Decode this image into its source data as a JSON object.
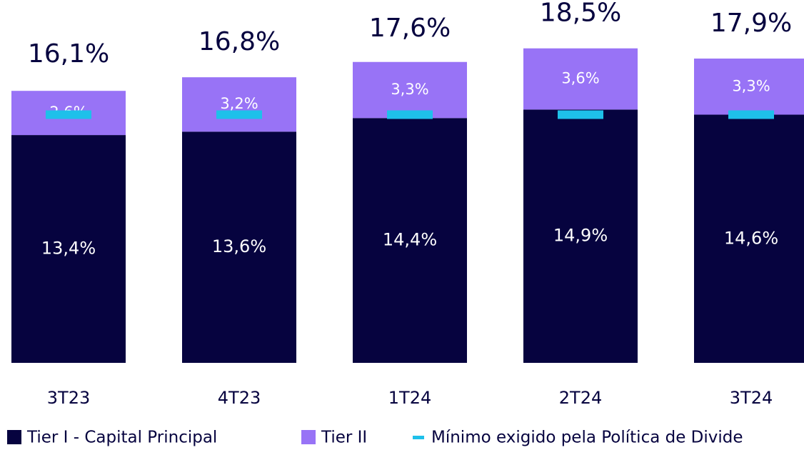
{
  "chart_data": {
    "type": "stacked_bar",
    "categories": [
      "3T23",
      "4T23",
      "1T24",
      "2T24",
      "3T24"
    ],
    "series": [
      {
        "name": "Tier I - Capital Principal",
        "color": "#06033f",
        "values": [
          13.4,
          13.6,
          14.4,
          14.9,
          14.6
        ],
        "value_labels": [
          "13,4%",
          "13,6%",
          "14,4%",
          "14,9%",
          "14,6%"
        ]
      },
      {
        "name": "Tier II",
        "color": "#9873f6",
        "values": [
          2.6,
          3.2,
          3.3,
          3.6,
          3.3
        ],
        "value_labels": [
          "2,6%",
          "3,2%",
          "3,3%",
          "3,6%",
          "3,3%"
        ]
      }
    ],
    "totals": {
      "values": [
        16.1,
        16.8,
        17.6,
        18.5,
        17.9
      ],
      "value_labels": [
        "16,1%",
        "16,8%",
        "17,6%",
        "18,5%",
        "17,9%"
      ]
    },
    "marker": {
      "name": "Mínimo exigido pela Política de Divide",
      "color": "#1ec0ea",
      "values": [
        14.6,
        14.6,
        14.6,
        14.6,
        14.6
      ]
    }
  }
}
